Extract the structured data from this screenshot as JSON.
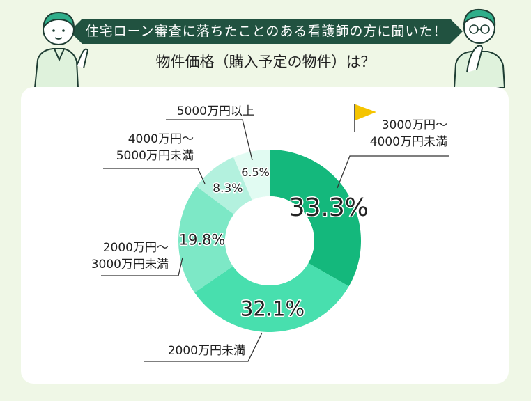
{
  "header": {
    "banner_text": "住宅ローン審査に落ちたことのある看護師の方に聞いた！",
    "subtitle": "物件価格（購入予定の物件）は？"
  },
  "colors": {
    "banner_bg": "#215240",
    "page_bg": "#eff7e6"
  },
  "chart_data": {
    "type": "pie",
    "variant": "donut",
    "start": "12 o'clock, clockwise",
    "slices": [
      {
        "label": "3000万円〜4000万円未満",
        "label_lines": [
          "3000万円〜",
          "4000万円未満"
        ],
        "value": 33.3,
        "display": "33.3%",
        "color": "#14b87c",
        "highlight_flag": true
      },
      {
        "label": "2000万円未満",
        "label_lines": [
          "2000万円未満"
        ],
        "value": 32.1,
        "display": "32.1%",
        "color": "#48dfae"
      },
      {
        "label": "2000万円〜3000万円未満",
        "label_lines": [
          "2000万円〜",
          "3000万円未満"
        ],
        "value": 19.8,
        "display": "19.8%",
        "color": "#7de8c6"
      },
      {
        "label": "4000万円〜5000万円未満",
        "label_lines": [
          "4000万円〜",
          "5000万円未満"
        ],
        "value": 8.3,
        "display": "8.3%",
        "color": "#b3f1de"
      },
      {
        "label": "5000万円以上",
        "label_lines": [
          "5000万円以上"
        ],
        "value": 6.5,
        "display": "6.5%",
        "color": "#e1fbf2"
      }
    ]
  }
}
